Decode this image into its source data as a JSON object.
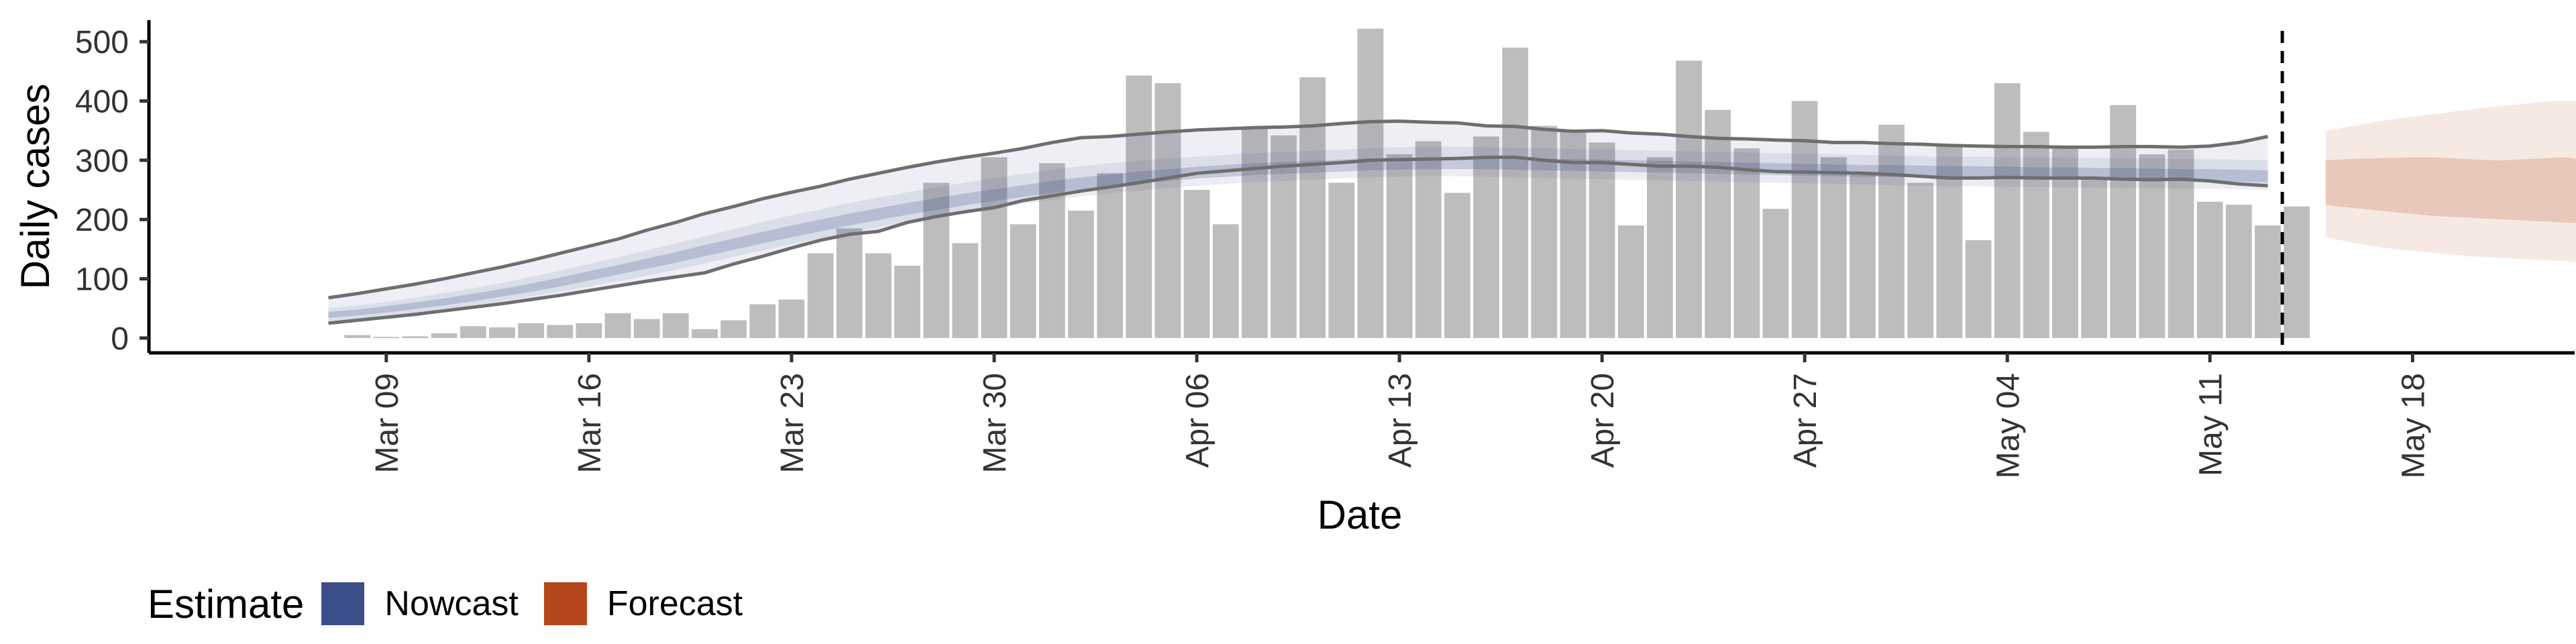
{
  "chart_data": {
    "type": "bar",
    "xlabel": "Date",
    "ylabel": "Daily cases",
    "ylim": [
      -25,
      550
    ],
    "yticks": [
      0,
      100,
      200,
      300,
      400,
      500
    ],
    "x_tick_labels": [
      "Mar 09",
      "Mar 16",
      "Mar 23",
      "Mar 30",
      "Apr 06",
      "Apr 13",
      "Apr 20",
      "Apr 27",
      "May 04",
      "May 11",
      "May 18"
    ],
    "x_tick_day_index": [
      9,
      16,
      23,
      30,
      37,
      44,
      51,
      58,
      65,
      72,
      79
    ],
    "x_day_range": [
      0.8,
      84.6
    ],
    "day_index_note": "days since Feb 29 (Mar 09 = 9)",
    "bars": {
      "name": "Reported daily cases",
      "color": "#bdbdbd",
      "start_day_index": 8,
      "values": [
        5,
        2,
        3,
        8,
        20,
        18,
        25,
        22,
        25,
        42,
        32,
        42,
        15,
        30,
        57,
        65,
        143,
        185,
        143,
        122,
        262,
        160,
        305,
        192,
        295,
        215,
        278,
        443,
        430,
        250,
        192,
        355,
        342,
        440,
        262,
        522,
        310,
        332,
        245,
        340,
        490,
        358,
        350,
        330,
        190,
        305,
        468,
        385,
        320,
        218,
        400,
        305,
        275,
        360,
        262,
        325,
        165,
        430,
        348,
        322,
        270,
        393,
        310,
        318,
        230,
        225,
        190,
        222
      ]
    },
    "nowcast": {
      "name": "Nowcast",
      "color": "#3c4f8a",
      "start_day_index": 7,
      "outer_upper": [
        68,
        75,
        83,
        91,
        100,
        110,
        120,
        131,
        143,
        155,
        167,
        182,
        195,
        210,
        222,
        235,
        246,
        256,
        268,
        278,
        288,
        297,
        305,
        312,
        320,
        330,
        338,
        340,
        344,
        348,
        351,
        353,
        355,
        356,
        358,
        362,
        365,
        366,
        364,
        363,
        358,
        357,
        352,
        349,
        350,
        346,
        344,
        340,
        337,
        336,
        334,
        333,
        330,
        330,
        328,
        327,
        325,
        324,
        323,
        323,
        322,
        322,
        323,
        323,
        322,
        324,
        330,
        340
      ],
      "mid_upper": [
        50,
        55,
        61,
        68,
        76,
        84,
        93,
        103,
        114,
        125,
        136,
        148,
        160,
        172,
        184,
        196,
        207,
        217,
        228,
        237,
        246,
        254,
        262,
        270,
        277,
        284,
        290,
        295,
        299,
        303,
        306,
        309,
        312,
        314,
        316,
        318,
        320,
        322,
        323,
        323,
        322,
        321,
        320,
        319,
        318,
        317,
        316,
        315,
        314,
        313,
        312,
        311,
        310,
        309,
        308,
        307,
        306,
        306,
        305,
        305,
        304,
        304,
        303,
        303,
        302,
        302,
        301,
        300
      ],
      "inner_upper": [
        44,
        48,
        54,
        60,
        67,
        75,
        83,
        92,
        102,
        113,
        123,
        134,
        145,
        157,
        168,
        179,
        190,
        200,
        210,
        219,
        228,
        236,
        244,
        251,
        258,
        265,
        271,
        276,
        281,
        285,
        289,
        292,
        295,
        297,
        299,
        301,
        303,
        304,
        305,
        305,
        305,
        304,
        303,
        302,
        301,
        300,
        299,
        298,
        297,
        296,
        295,
        294,
        293,
        292,
        292,
        291,
        290,
        290,
        289,
        288,
        288,
        287,
        287,
        286,
        285,
        285,
        284,
        283
      ],
      "inner_lower": [
        34,
        38,
        43,
        49,
        55,
        62,
        70,
        78,
        87,
        97,
        107,
        117,
        127,
        138,
        149,
        160,
        170,
        180,
        190,
        199,
        208,
        216,
        224,
        231,
        238,
        245,
        251,
        256,
        261,
        265,
        269,
        272,
        275,
        277,
        279,
        281,
        283,
        284,
        285,
        285,
        285,
        284,
        283,
        282,
        281,
        280,
        279,
        278,
        277,
        276,
        275,
        274,
        273,
        272,
        272,
        271,
        270,
        270,
        269,
        268,
        268,
        267,
        267,
        266,
        265,
        265,
        264,
        263
      ],
      "mid_lower": [
        28,
        32,
        37,
        42,
        48,
        55,
        62,
        70,
        78,
        87,
        96,
        105,
        115,
        126,
        137,
        148,
        158,
        168,
        178,
        187,
        196,
        204,
        212,
        219,
        226,
        233,
        239,
        244,
        249,
        253,
        257,
        260,
        263,
        265,
        267,
        269,
        271,
        272,
        273,
        273,
        272,
        271,
        270,
        269,
        268,
        267,
        266,
        265,
        264,
        263,
        262,
        261,
        260,
        259,
        258,
        257,
        256,
        256,
        255,
        255,
        254,
        254,
        253,
        253,
        252,
        252,
        251,
        250
      ],
      "outer_lower": [
        25,
        30,
        35,
        40,
        46,
        52,
        58,
        65,
        72,
        80,
        88,
        96,
        103,
        110,
        125,
        138,
        152,
        165,
        175,
        180,
        195,
        205,
        213,
        220,
        232,
        240,
        248,
        255,
        262,
        270,
        278,
        282,
        286,
        290,
        293,
        296,
        300,
        301,
        302,
        303,
        305,
        305,
        300,
        296,
        296,
        293,
        290,
        290,
        288,
        284,
        281,
        280,
        279,
        278,
        276,
        273,
        270,
        270,
        271,
        270,
        270,
        270,
        268,
        267,
        268,
        265,
        260,
        257
      ]
    },
    "forecast": {
      "name": "Forecast",
      "color": "#b5471a",
      "start_day_index": 76,
      "end_day_index": 90,
      "outer_upper": [
        350,
        353,
        357,
        360,
        364,
        367,
        370,
        373,
        375,
        378,
        380,
        383,
        385,
        388,
        390,
        392,
        394,
        396,
        398,
        400,
        400,
        400,
        402,
        402,
        403,
        403,
        404,
        405,
        406,
        406,
        408,
        409,
        412,
        415,
        420
      ],
      "inner_upper": [
        300,
        301,
        302,
        303,
        303,
        304,
        304,
        305,
        305,
        305,
        304,
        303,
        302,
        301,
        300,
        300,
        301,
        302,
        303,
        304,
        305,
        303,
        302,
        301,
        300,
        299,
        298,
        296,
        294,
        292,
        290,
        289,
        287,
        285,
        283
      ],
      "inner_lower": [
        225,
        222,
        220,
        218,
        216,
        214,
        212,
        210,
        208,
        206,
        205,
        204,
        203,
        202,
        201,
        200,
        199,
        198,
        197,
        196,
        195,
        194,
        193,
        192,
        191,
        190,
        188,
        186,
        184,
        182,
        178,
        175,
        172,
        168,
        165
      ],
      "outer_lower": [
        170,
        166,
        162,
        158,
        155,
        152,
        150,
        148,
        146,
        144,
        142,
        140,
        138,
        137,
        136,
        135,
        134,
        133,
        132,
        131,
        130,
        128,
        126,
        124,
        122,
        120,
        118,
        116,
        115,
        114,
        113,
        112,
        111,
        110,
        110
      ]
    },
    "vertical_line": {
      "day_index": 74.5,
      "style": "dashed"
    }
  },
  "legend": {
    "title": "Estimate",
    "items": [
      {
        "label": "Nowcast",
        "color": "#3c4f8a"
      },
      {
        "label": "Forecast",
        "color": "#b5471a"
      }
    ]
  }
}
